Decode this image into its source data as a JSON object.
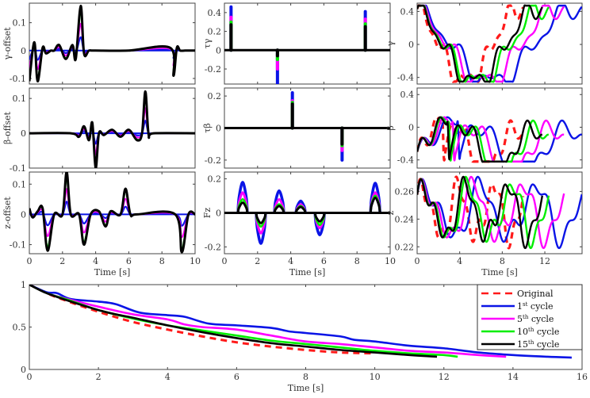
{
  "colors": {
    "original": "#ff1a1a",
    "c1": "#0a14e6",
    "c5": "#ff00ff",
    "c10": "#00ee00",
    "c15": "#000000"
  },
  "legend": {
    "entries": [
      {
        "key": "original",
        "label": "Original",
        "sup": "",
        "style": "dashed"
      },
      {
        "key": "c1",
        "label": "1",
        "sup": "st",
        "suffix": " cycle",
        "style": "solid"
      },
      {
        "key": "c5",
        "label": "5",
        "sup": "th",
        "suffix": " cycle",
        "style": "solid"
      },
      {
        "key": "c10",
        "label": "10",
        "sup": "th",
        "suffix": " cycle",
        "style": "solid"
      },
      {
        "key": "c15",
        "label": "15",
        "sup": "th",
        "suffix": " cycle",
        "style": "solid"
      }
    ]
  },
  "chart_data": [
    {
      "id": "gamma_offset",
      "type": "line",
      "ylabel": "γ-offset",
      "xlabel": "",
      "xlim": [
        0,
        10
      ],
      "ylim": [
        -0.12,
        0.17
      ],
      "yticks": [
        -0.1,
        0,
        0.1
      ],
      "ytick_labels": [
        "-0.1",
        "0",
        "0.1"
      ],
      "xticks": [
        0,
        2,
        4,
        6,
        8,
        10
      ],
      "series": [
        {
          "name": "15th cycle",
          "x": [
            0,
            0.3,
            0.5,
            0.8,
            1.0,
            1.3,
            1.5,
            1.8,
            2.2,
            2.6,
            2.8,
            3.1,
            3.3,
            3.6,
            4,
            6,
            8.5,
            8.7,
            8.9,
            9.1,
            9.4,
            10
          ],
          "y": [
            -0.11,
            0.03,
            -0.11,
            0.01,
            -0.01,
            0.0,
            0.0,
            0.02,
            -0.03,
            0.02,
            -0.03,
            0.16,
            -0.01,
            0.0,
            0,
            0,
            0.01,
            -0.09,
            0.01,
            0.0,
            0,
            0
          ]
        },
        {
          "name": "1st cycle",
          "x": [
            0,
            0.5,
            1,
            2.9,
            3.1,
            3.3,
            8.6,
            8.8,
            9,
            10
          ],
          "y": [
            0,
            0,
            0,
            0,
            0.035,
            0,
            0,
            -0.02,
            0,
            0
          ]
        }
      ]
    },
    {
      "id": "tau_gamma",
      "type": "line",
      "ylabel": "τγ",
      "xlim": [
        0,
        10
      ],
      "ylim": [
        -0.36,
        0.5
      ],
      "yticks": [
        -0.2,
        0,
        0.2,
        0.4
      ],
      "ytick_labels": [
        "-0.2",
        "0",
        "0.2",
        "0.4"
      ],
      "xticks": [
        0,
        2,
        4,
        6,
        8,
        10
      ],
      "series": [
        {
          "name": "1st cycle",
          "peaks": [
            {
              "x": 0.4,
              "y": 0.46
            },
            {
              "x": 3.2,
              "y": -0.36
            },
            {
              "x": 8.5,
              "y": 0.41
            }
          ]
        },
        {
          "name": "5th cycle",
          "peaks": [
            {
              "x": 0.4,
              "y": 0.35
            },
            {
              "x": 3.2,
              "y": -0.2
            },
            {
              "x": 8.5,
              "y": 0.33
            }
          ]
        },
        {
          "name": "10th cycle",
          "peaks": [
            {
              "x": 0.4,
              "y": 0.3
            },
            {
              "x": 3.2,
              "y": -0.1
            },
            {
              "x": 8.5,
              "y": 0.28
            }
          ]
        },
        {
          "name": "15th cycle",
          "peaks": [
            {
              "x": 0.4,
              "y": 0.27
            },
            {
              "x": 3.2,
              "y": -0.06
            },
            {
              "x": 8.5,
              "y": 0.25
            }
          ]
        }
      ]
    },
    {
      "id": "gamma",
      "type": "line",
      "ylabel": "γ",
      "xlim": [
        0,
        15.5
      ],
      "ylim": [
        -0.48,
        0.5
      ],
      "yticks": [
        -0.4,
        0,
        0.4
      ],
      "ytick_labels": [
        "-0.4",
        "0",
        "0.4"
      ],
      "xticks": [
        0,
        4,
        8,
        12
      ]
    },
    {
      "id": "beta_offset",
      "type": "line",
      "ylabel": "β-offset",
      "xlim": [
        0,
        10
      ],
      "ylim": [
        -0.1,
        0.13
      ],
      "yticks": [
        -0.1,
        0,
        0.1
      ],
      "ytick_labels": [
        "-0.1",
        "0",
        "0.1"
      ],
      "xticks": [
        0,
        2,
        4,
        6,
        8,
        10
      ],
      "series": [
        {
          "name": "15th cycle",
          "x": [
            0,
            2.5,
            3,
            3.3,
            3.6,
            3.8,
            4.0,
            4.2,
            4.5,
            5,
            5.5,
            6,
            6.5,
            6.8,
            7.0,
            7.2,
            7.5,
            10
          ],
          "y": [
            0,
            0,
            -0.01,
            0.02,
            -0.02,
            0.03,
            -0.1,
            0.0,
            -0.005,
            0.01,
            -0.01,
            0.01,
            -0.02,
            0.0,
            0.12,
            -0.005,
            0,
            0
          ]
        }
      ]
    },
    {
      "id": "tau_beta",
      "type": "line",
      "ylabel": "τβ",
      "xlim": [
        0,
        10
      ],
      "ylim": [
        -0.25,
        0.25
      ],
      "yticks": [
        -0.2,
        0,
        0.2
      ],
      "ytick_labels": [
        "-0.2",
        "0",
        "0.2"
      ],
      "xticks": [
        0,
        2,
        4,
        6,
        8,
        10
      ],
      "series": [
        {
          "name": "1st cycle",
          "peaks": [
            {
              "x": 4.1,
              "y": 0.22
            },
            {
              "x": 7.1,
              "y": -0.2
            }
          ]
        },
        {
          "name": "5th cycle",
          "peaks": [
            {
              "x": 4.1,
              "y": 0.17
            },
            {
              "x": 7.1,
              "y": -0.14
            }
          ]
        },
        {
          "name": "10th cycle",
          "peaks": [
            {
              "x": 4.1,
              "y": 0.16
            },
            {
              "x": 7.1,
              "y": -0.11
            }
          ]
        },
        {
          "name": "15th cycle",
          "peaks": [
            {
              "x": 4.1,
              "y": 0.15
            },
            {
              "x": 7.1,
              "y": -0.1
            }
          ]
        }
      ]
    },
    {
      "id": "beta",
      "type": "line",
      "ylabel": "β",
      "xlim": [
        0,
        15.5
      ],
      "ylim": [
        -0.5,
        0.48
      ],
      "yticks": [
        -0.4,
        0,
        0.4
      ],
      "ytick_labels": [
        "-0.4",
        "0",
        "0.4"
      ],
      "xticks": [
        0,
        4,
        8,
        12
      ]
    },
    {
      "id": "z_offset",
      "type": "line",
      "ylabel": "z-offset",
      "xlabel": "Time [s]",
      "xlim": [
        0,
        10
      ],
      "ylim": [
        -0.13,
        0.14
      ],
      "yticks": [
        -0.1,
        0,
        0.1
      ],
      "ytick_labels": [
        "-0.1",
        "0",
        "0.1"
      ],
      "xticks": [
        0,
        2,
        4,
        6,
        8,
        10
      ],
      "xtick_labels": [
        "0",
        "2",
        "4",
        "6",
        "8",
        "10"
      ],
      "series": [
        {
          "name": "15th cycle",
          "x": [
            0,
            0.2,
            0.5,
            0.8,
            1.1,
            1.5,
            2.0,
            2.25,
            2.5,
            3.0,
            3.3,
            3.7,
            4.2,
            4.6,
            4.9,
            5.5,
            5.8,
            6.1,
            6.5,
            8.8,
            9.2,
            9.6,
            10
          ],
          "y": [
            0.02,
            -0.01,
            0.01,
            0.02,
            -0.12,
            0.0,
            0.0,
            0.14,
            0.0,
            0.0,
            -0.1,
            0.0,
            0.01,
            -0.04,
            0.01,
            0.0,
            0.085,
            0.0,
            0,
            0,
            -0.125,
            0,
            0
          ]
        },
        {
          "name": "5th cycle",
          "x": [
            0,
            1.1,
            2.25,
            3.3,
            4.6,
            5.8,
            9.2,
            10
          ],
          "y": [
            0,
            -0.065,
            0.07,
            -0.055,
            -0.02,
            0.045,
            -0.065,
            0
          ]
        },
        {
          "name": "1st cycle",
          "x": [
            0,
            1.1,
            2.25,
            3.3,
            4.6,
            5.8,
            9.2,
            10
          ],
          "y": [
            0,
            -0.02,
            0.015,
            -0.015,
            -0.005,
            0.01,
            -0.02,
            0
          ]
        }
      ]
    },
    {
      "id": "F_z",
      "type": "line",
      "ylabel": "Fz",
      "xlabel": "Time [s]",
      "xlim": [
        0,
        10
      ],
      "ylim": [
        -0.24,
        0.24
      ],
      "yticks": [
        -0.2,
        0,
        0.2
      ],
      "ytick_labels": [
        "-0.2",
        "0",
        "0.2"
      ],
      "xticks": [
        0,
        2,
        4,
        6,
        8,
        10
      ],
      "xtick_labels": [
        "0",
        "2",
        "4",
        "6",
        "8",
        "10"
      ],
      "series": [
        {
          "name": "1st cycle",
          "peaks": [
            {
              "x": 1.1,
              "y": 0.18
            },
            {
              "x": 2.2,
              "y": -0.18
            },
            {
              "x": 3.3,
              "y": 0.13
            },
            {
              "x": 4.6,
              "y": 0.07
            },
            {
              "x": 5.75,
              "y": -0.13
            },
            {
              "x": 9.1,
              "y": 0.175
            }
          ]
        },
        {
          "name": "5th cycle",
          "peaks": [
            {
              "x": 1.1,
              "y": 0.12
            },
            {
              "x": 2.2,
              "y": -0.12
            },
            {
              "x": 3.3,
              "y": 0.08
            },
            {
              "x": 4.6,
              "y": 0.05
            },
            {
              "x": 5.75,
              "y": -0.09
            },
            {
              "x": 9.1,
              "y": 0.12
            }
          ]
        },
        {
          "name": "10th cycle",
          "peaks": [
            {
              "x": 1.1,
              "y": 0.08
            },
            {
              "x": 2.2,
              "y": -0.08
            },
            {
              "x": 3.3,
              "y": 0.05
            },
            {
              "x": 4.6,
              "y": 0.04
            },
            {
              "x": 5.75,
              "y": -0.07
            },
            {
              "x": 9.1,
              "y": 0.1
            }
          ]
        },
        {
          "name": "15th cycle",
          "peaks": [
            {
              "x": 1.1,
              "y": 0.06
            },
            {
              "x": 2.2,
              "y": -0.06
            },
            {
              "x": 3.3,
              "y": 0.04
            },
            {
              "x": 4.6,
              "y": 0.035
            },
            {
              "x": 5.75,
              "y": -0.05
            },
            {
              "x": 9.1,
              "y": 0.09
            }
          ]
        }
      ]
    },
    {
      "id": "z",
      "type": "line",
      "ylabel": "z",
      "xlabel": "Time [s]",
      "xlim": [
        0,
        15.5
      ],
      "ylim": [
        0.215,
        0.274
      ],
      "yticks": [
        0.22,
        0.24,
        0.26
      ],
      "ytick_labels": [
        "0.22",
        "0.24",
        "0.26"
      ],
      "xticks": [
        0,
        4,
        8,
        12
      ],
      "xtick_labels": [
        "0",
        "4",
        "8",
        "12"
      ]
    },
    {
      "id": "progress",
      "type": "line",
      "xlabel": "Time [s]",
      "ylabel": "",
      "xlim": [
        0,
        16
      ],
      "ylim": [
        0,
        1
      ],
      "yticks": [
        0,
        0.5,
        1
      ],
      "ytick_labels": [
        "0",
        "0.5",
        "1"
      ],
      "xticks": [
        0,
        2,
        4,
        6,
        8,
        10,
        12,
        14,
        16
      ],
      "xtick_labels": [
        "0",
        "2",
        "4",
        "6",
        "8",
        "10",
        "12",
        "14",
        "16"
      ],
      "legend_position": "upper right",
      "series": [
        {
          "name": "Original",
          "key": "original",
          "dashed": true,
          "x": [
            0,
            0.5,
            1,
            2,
            3,
            4,
            5,
            6,
            7,
            8,
            9,
            10
          ],
          "y": [
            1,
            0.9,
            0.82,
            0.68,
            0.56,
            0.47,
            0.39,
            0.32,
            0.27,
            0.23,
            0.2,
            0.19
          ]
        },
        {
          "name": "1st cycle",
          "key": "c1",
          "x": [
            0,
            0.5,
            0.8,
            1.2,
            2,
            2.5,
            3.2,
            4,
            4.5,
            5.2,
            6,
            7,
            7.5,
            8,
            9,
            9.4,
            10,
            11,
            12,
            13,
            14,
            15,
            15.7
          ],
          "y": [
            1,
            0.91,
            0.9,
            0.83,
            0.8,
            0.77,
            0.67,
            0.64,
            0.62,
            0.54,
            0.52,
            0.49,
            0.45,
            0.43,
            0.39,
            0.35,
            0.33,
            0.28,
            0.25,
            0.2,
            0.17,
            0.15,
            0.14
          ]
        },
        {
          "name": "5th cycle",
          "key": "c5",
          "x": [
            0,
            0.5,
            1.2,
            2,
            3,
            4,
            4.5,
            5,
            6,
            7,
            8,
            9,
            10,
            11,
            12,
            13,
            13.8
          ],
          "y": [
            1,
            0.9,
            0.82,
            0.74,
            0.65,
            0.59,
            0.53,
            0.5,
            0.47,
            0.4,
            0.33,
            0.3,
            0.26,
            0.22,
            0.2,
            0.17,
            0.15
          ]
        },
        {
          "name": "10th cycle",
          "key": "c10",
          "x": [
            0,
            0.5,
            1.2,
            2,
            3,
            4,
            5,
            6,
            7,
            8,
            9,
            10,
            11,
            12,
            12.4
          ],
          "y": [
            1,
            0.9,
            0.81,
            0.7,
            0.6,
            0.52,
            0.46,
            0.4,
            0.34,
            0.3,
            0.26,
            0.22,
            0.19,
            0.17,
            0.15
          ]
        },
        {
          "name": "15th cycle",
          "key": "c15",
          "x": [
            0,
            0.5,
            1.2,
            2,
            2.5,
            3,
            4,
            5,
            6,
            7,
            8,
            9,
            10,
            11,
            11.8
          ],
          "y": [
            1,
            0.9,
            0.8,
            0.7,
            0.65,
            0.61,
            0.52,
            0.44,
            0.37,
            0.31,
            0.27,
            0.23,
            0.2,
            0.17,
            0.15
          ]
        }
      ]
    }
  ]
}
